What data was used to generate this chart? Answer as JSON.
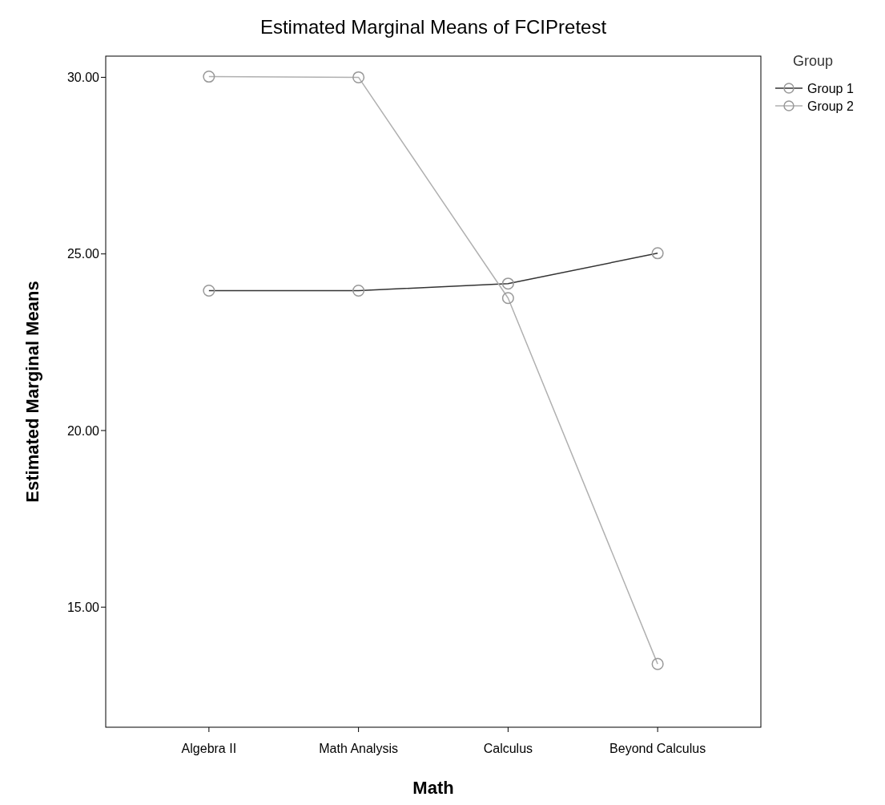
{
  "chart_data": {
    "type": "line",
    "title": "Estimated Marginal Means of FCIPretest",
    "xlabel": "Math",
    "ylabel": "Estimated Marginal Means",
    "legend_title": "Group",
    "categories": [
      "Algebra II",
      "Math Analysis",
      "Calculus",
      "Beyond Calculus"
    ],
    "series": [
      {
        "name": "Group 1",
        "color": "#333333",
        "values": [
          23.96,
          23.96,
          24.16,
          25.02
        ]
      },
      {
        "name": "Group 2",
        "color": "#b0b0b0",
        "values": [
          30.02,
          30.0,
          23.75,
          13.39
        ]
      }
    ],
    "ylim": [
      11.6,
      30.6
    ],
    "yticks": [
      {
        "value": 15,
        "label": "15.00"
      },
      {
        "value": 20,
        "label": "20.00"
      },
      {
        "value": 25,
        "label": "25.00"
      },
      {
        "value": 30,
        "label": "30.00"
      }
    ],
    "marker": "circle",
    "grid": false,
    "legend": "top right"
  }
}
